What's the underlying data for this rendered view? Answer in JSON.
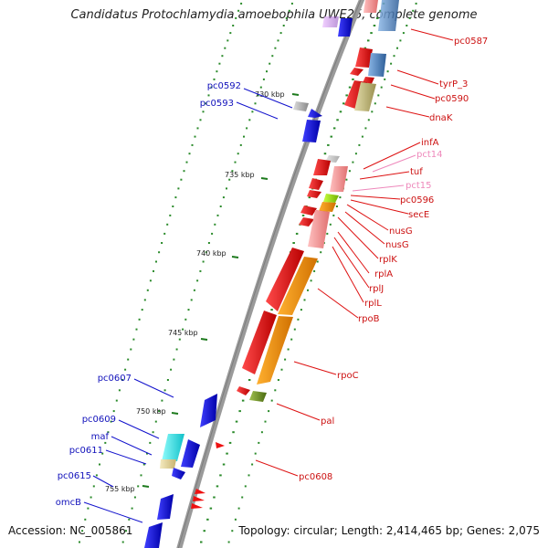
{
  "header": {
    "title": "Candidatus Protochlamydia amoebophila UWE25, complete genome"
  },
  "footer": {
    "accession": "Accession: NC_005861",
    "topology": "Topology: circular; Length: 2,414,465 bp; Genes: 2,075"
  },
  "scale_ticks": [
    "730 kbp",
    "735 kbp",
    "740 kbp",
    "745 kbp",
    "750 kbp",
    "755 kbp"
  ],
  "labels_right": [
    "pc0587",
    "tyrP_3",
    "pc0590",
    "dnaK",
    "infA",
    "pct14",
    "tuf",
    "pct15",
    "pc0596",
    "secE",
    "nusG",
    "nusG",
    "rplK",
    "rplA",
    "rplJ",
    "rplL",
    "rpoB",
    "rpoC",
    "pal",
    "pc0608"
  ],
  "labels_left": [
    "pc0592",
    "pc0593",
    "pc0607",
    "pc0609",
    "maf",
    "pc0611",
    "pc0615",
    "omcB"
  ],
  "colors": {
    "forward_cds": "#ee1111",
    "reverse_cds": "#1a1af0",
    "rrna_trna": "#f5a0a0",
    "orange_feature": "#ff9900",
    "cog_steelblue": "#4f86c0",
    "cog_khaki": "#c8c084",
    "cog_cyan": "#22e8e8",
    "cog_green": "#6f8a20",
    "backbone": "#8a8a8a",
    "tick_green": "#2a8a2a",
    "label_red": "#cc1111",
    "label_pink": "#ee88bb",
    "label_blue": "#1111bb"
  }
}
